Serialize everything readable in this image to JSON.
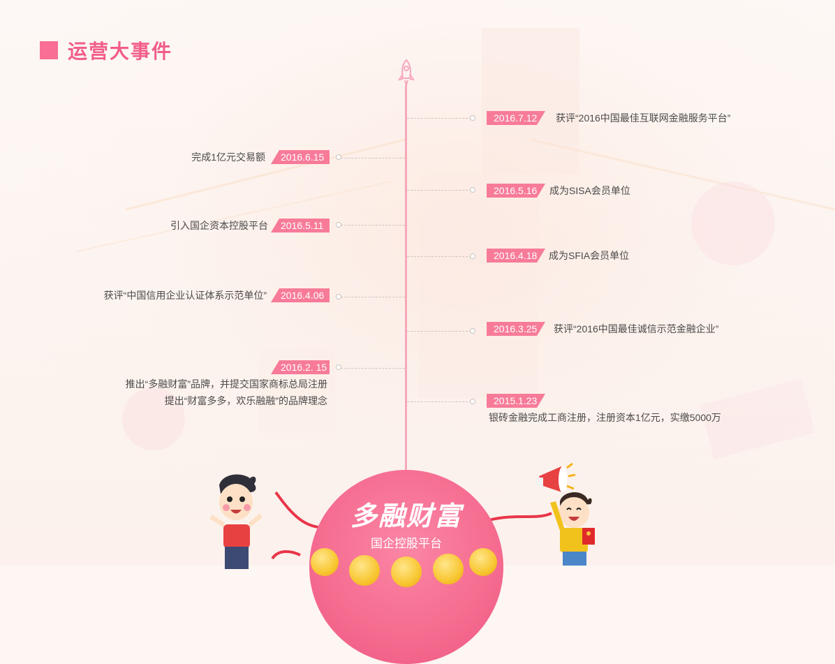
{
  "section": {
    "title": "运营大事件"
  },
  "colors": {
    "accent": "#f77b99",
    "title": "#f15e87",
    "axis": "#f7a7bb"
  },
  "timeline": {
    "right": [
      {
        "date": "2016.7.12",
        "text": "获评“2016中国最佳互联网金融服务平台”"
      },
      {
        "date": "2016.5.16",
        "text": "成为SISA会员单位"
      },
      {
        "date": "2016.4.18",
        "text": "成为SFIA会员单位"
      },
      {
        "date": "2016.3.25",
        "text": "获评“2016中国最佳诚信示范金融企业”"
      },
      {
        "date": "2015.1.23",
        "text": "银砖金融完成工商注册，注册资本1亿元，实缴5000万"
      }
    ],
    "left": [
      {
        "date": "2016.6.15",
        "text": "完成1亿元交易额"
      },
      {
        "date": "2016.5.11",
        "text": "引入国企资本控股平台"
      },
      {
        "date": "2016.4.06",
        "text": "获评“中国信用企业认证体系示范单位”"
      },
      {
        "date": "2016.2. 15",
        "text": "推出“多融财富”品牌，并提交国家商标总局注册",
        "text2": "提出“财富多多，欢乐融融”的品牌理念"
      }
    ]
  },
  "brand": {
    "name": "多融财富",
    "slogan": "国企控股平台"
  },
  "icons": [
    "rocket-icon",
    "megaphone-icon",
    "red-envelope-icon",
    "coin-icon"
  ]
}
